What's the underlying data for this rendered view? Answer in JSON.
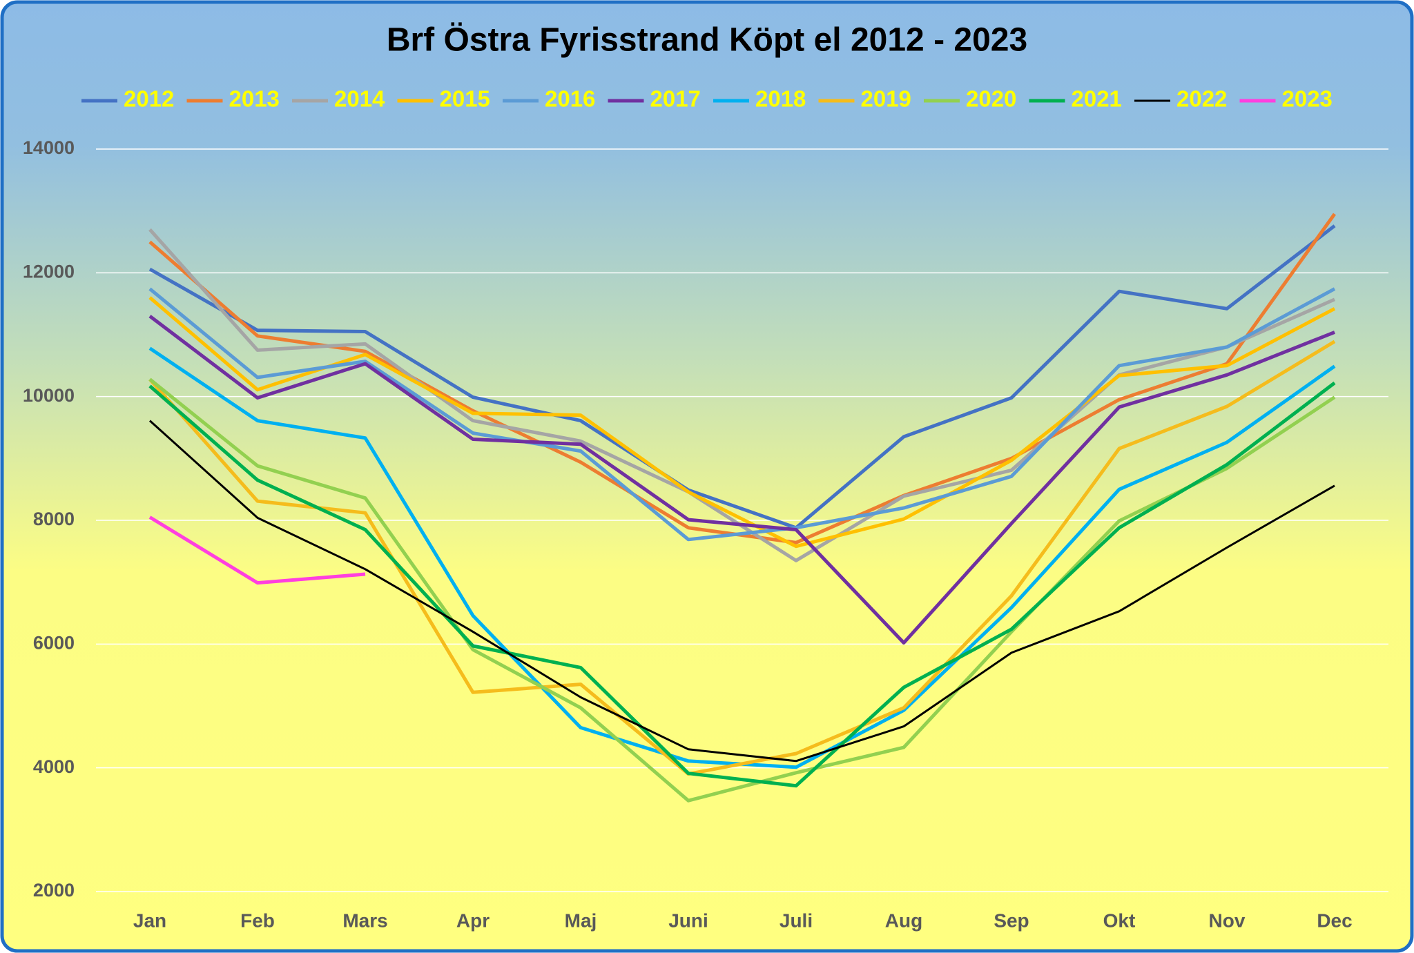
{
  "chart_data": {
    "type": "line",
    "title": "Brf Östra Fyrisstrand Köpt el 2012 - 2023",
    "categories": [
      "Jan",
      "Feb",
      "Mars",
      "Apr",
      "Maj",
      "Juni",
      "Juli",
      "Aug",
      "Sep",
      "Okt",
      "Nov",
      "Dec"
    ],
    "ylim": [
      2000,
      14000
    ],
    "yticks": [
      2000,
      4000,
      6000,
      8000,
      10000,
      12000,
      14000
    ],
    "grid": true,
    "legend": "top",
    "series": [
      {
        "name": "2012",
        "color": "#4472c4",
        "values": [
          12060,
          11070,
          11050,
          9990,
          9610,
          8490,
          7880,
          9350,
          9980,
          11700,
          11420,
          12760
        ]
      },
      {
        "name": "2013",
        "color": "#ed7d31",
        "values": [
          12500,
          10980,
          10730,
          9770,
          8940,
          7880,
          7640,
          8400,
          9000,
          9950,
          10530,
          12950
        ]
      },
      {
        "name": "2014",
        "color": "#a5a5a5",
        "values": [
          12700,
          10750,
          10850,
          9610,
          9280,
          8460,
          7350,
          8390,
          8810,
          10350,
          10800,
          11570
        ]
      },
      {
        "name": "2015",
        "color": "#ffc000",
        "values": [
          11600,
          10110,
          10680,
          9730,
          9700,
          8460,
          7580,
          8020,
          8970,
          10340,
          10500,
          11420
        ]
      },
      {
        "name": "2016",
        "color": "#5b9bd5",
        "values": [
          11740,
          10310,
          10570,
          9410,
          9120,
          7690,
          7880,
          8200,
          8710,
          10500,
          10800,
          11740
        ]
      },
      {
        "name": "2017",
        "color": "#7030a0",
        "values": [
          11300,
          9980,
          10530,
          9310,
          9230,
          8010,
          7850,
          6020,
          7950,
          9830,
          10350,
          11040
        ]
      },
      {
        "name": "2018",
        "color": "#00b0f0",
        "values": [
          10780,
          9610,
          9330,
          6460,
          4650,
          4110,
          4010,
          4930,
          6590,
          8500,
          9260,
          10490
        ]
      },
      {
        "name": "2019",
        "color": "#f5bc1c",
        "values": [
          10280,
          8310,
          8120,
          5220,
          5350,
          3900,
          4230,
          4970,
          6780,
          9160,
          9840,
          10890
        ]
      },
      {
        "name": "2020",
        "color": "#92d050",
        "values": [
          10280,
          8880,
          8360,
          5910,
          4970,
          3470,
          3920,
          4330,
          6200,
          7990,
          8840,
          9990
        ]
      },
      {
        "name": "2021",
        "color": "#00b050",
        "values": [
          10170,
          8650,
          7850,
          5970,
          5620,
          3910,
          3710,
          5300,
          6240,
          7880,
          8900,
          10220
        ]
      },
      {
        "name": "2022",
        "color": "#000000",
        "values": [
          9610,
          8040,
          7210,
          6200,
          5140,
          4300,
          4110,
          4670,
          5860,
          6530,
          7560,
          8560
        ]
      },
      {
        "name": "2023",
        "color": "#ff3fdf",
        "values": [
          8050,
          6990,
          7130,
          null,
          null,
          null,
          null,
          null,
          null,
          null,
          null,
          null
        ]
      }
    ]
  }
}
